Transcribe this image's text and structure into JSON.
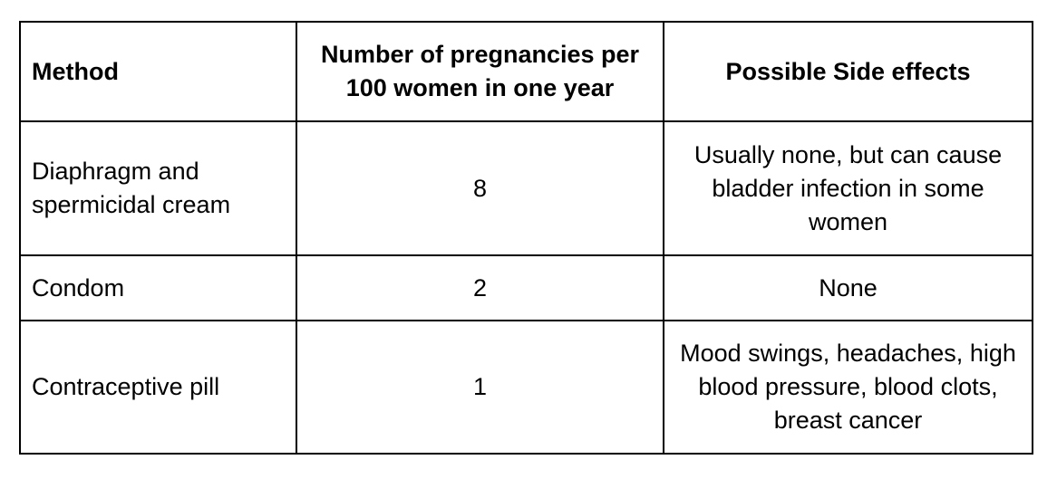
{
  "table": {
    "headers": {
      "method": "Method",
      "pregnancies": "Number of pregnancies per 100 women in one year",
      "side_effects": "Possible Side effects"
    },
    "rows": [
      {
        "method": "Diaphragm and spermicidal cream",
        "pregnancies": "8",
        "side_effects": "Usually none, but can cause bladder infection in some women"
      },
      {
        "method": "Condom",
        "pregnancies": "2",
        "side_effects": "None"
      },
      {
        "method": "Contraceptive pill",
        "pregnancies": "1",
        "side_effects": "Mood swings, headaches, high blood pressure, blood clots, breast cancer"
      }
    ]
  }
}
